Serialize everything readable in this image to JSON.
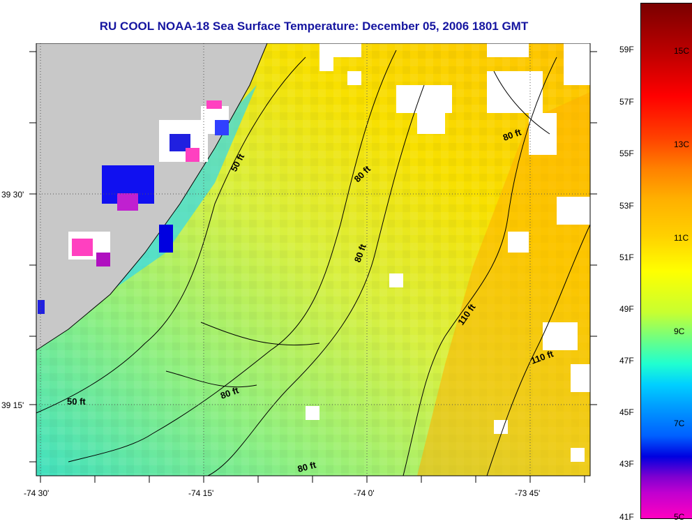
{
  "title": "RU COOL  NOAA-18  Sea Surface Temperature:  December 05, 2006 1801 GMT",
  "lat_labels": [
    "39 30'",
    "39 15'"
  ],
  "lon_labels": [
    "-74 30'",
    "-74 15'",
    "-74 0'",
    "-73 45'"
  ],
  "contour_labels": [
    "50 ft",
    "50 ft",
    "80 ft",
    "80 ft",
    "80 ft",
    "80 ft",
    "80 ft",
    "110 ft",
    "110 ft"
  ],
  "colorbar": {
    "fahrenheit": [
      "59F",
      "57F",
      "55F",
      "53F",
      "51F",
      "49F",
      "47F",
      "45F",
      "43F",
      "41F"
    ],
    "celsius": [
      "15C",
      "13C",
      "11C",
      "9C",
      "7C",
      "5C"
    ]
  },
  "colors": {
    "land": "#c8c8c8",
    "title": "#1515a0"
  }
}
